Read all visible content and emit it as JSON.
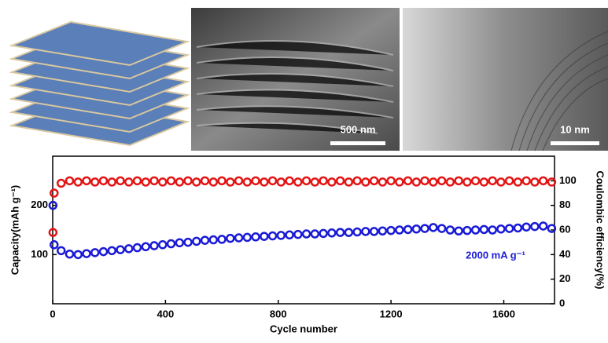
{
  "figure": {
    "scale_bars": [
      "500 nm",
      "10 nm"
    ]
  },
  "chart_data": {
    "type": "scatter",
    "x_label": "Cycle number",
    "y_label": "Capacity(mAh g⁻¹)",
    "y2_label": "Coulombic efficiency(%)",
    "annotation": "2000 mA g⁻¹",
    "xlim": [
      0,
      1780
    ],
    "xticks": [
      0,
      400,
      800,
      1200,
      1600
    ],
    "ylim": [
      0,
      300
    ],
    "yticks": [
      100,
      200
    ],
    "y2lim": [
      0,
      120
    ],
    "y2ticks": [
      0,
      20,
      40,
      60,
      80,
      100
    ],
    "x": [
      1,
      5,
      30,
      60,
      90,
      120,
      150,
      180,
      210,
      240,
      270,
      300,
      330,
      360,
      390,
      420,
      450,
      480,
      510,
      540,
      570,
      600,
      630,
      660,
      690,
      720,
      750,
      780,
      810,
      840,
      870,
      900,
      930,
      960,
      990,
      1020,
      1050,
      1080,
      1110,
      1140,
      1170,
      1200,
      1230,
      1260,
      1290,
      1320,
      1350,
      1380,
      1410,
      1440,
      1470,
      1500,
      1530,
      1560,
      1590,
      1620,
      1650,
      1680,
      1710,
      1740,
      1770
    ],
    "series": [
      {
        "color": "#1a1ad6",
        "axis": "y",
        "values": [
          200,
          120,
          108,
          101,
          100,
          102,
          104,
          106,
          108,
          110,
          112,
          114,
          116,
          118,
          120,
          122,
          124,
          125,
          127,
          129,
          130,
          131,
          133,
          134,
          135,
          136,
          137,
          138,
          139,
          140,
          141,
          142,
          142,
          143,
          144,
          145,
          145,
          146,
          147,
          147,
          148,
          149,
          150,
          151,
          152,
          153,
          155,
          153,
          150,
          148,
          149,
          150,
          151,
          150,
          152,
          153,
          154,
          156,
          157,
          158,
          153
        ]
      },
      {
        "color": "#e31414",
        "axis": "y2",
        "values": [
          58,
          90,
          98,
          100,
          99,
          100,
          99,
          100,
          99,
          100,
          99,
          100,
          99,
          100,
          99,
          100,
          99,
          100,
          99,
          100,
          99,
          100,
          99,
          100,
          99,
          100,
          99,
          100,
          99,
          100,
          99,
          100,
          99,
          100,
          99,
          100,
          99,
          100,
          99,
          100,
          99,
          100,
          99,
          100,
          99,
          100,
          99,
          100,
          99,
          100,
          99,
          100,
          99,
          100,
          99,
          100,
          99,
          100,
          99,
          100,
          99
        ]
      }
    ]
  }
}
